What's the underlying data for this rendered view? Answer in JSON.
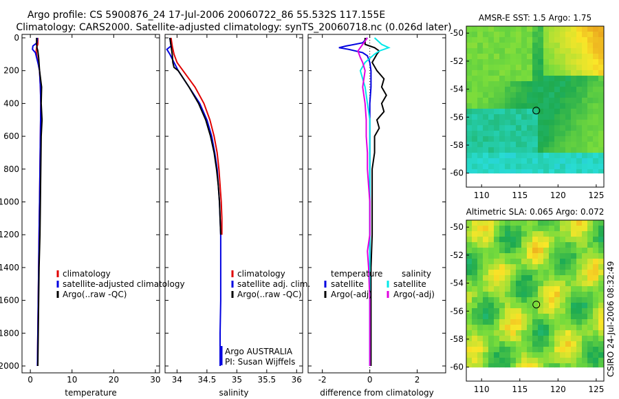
{
  "title_line1": "Argo profile: CS 5900876_24 17-Jul-2006 20060722_86 55.532S 117.155E",
  "title_line2": "Climatology: CARS2000. Satellite-adjusted climatology: synTS_20060718.nc (0.026d later)",
  "colors": {
    "clim": "#e00000",
    "sat": "#0000e0",
    "argo": "#000000",
    "sat_sal": "#00e8e8",
    "argo_sal": "#e000e0"
  },
  "chart_data": [
    {
      "type": "line",
      "id": "temperature",
      "xlabel": "temperature",
      "xlim": [
        -2,
        31
      ],
      "ylim": [
        2050,
        0
      ],
      "xticks": [
        0,
        10,
        20,
        30
      ],
      "yticks": [
        0,
        200,
        400,
        600,
        800,
        1000,
        1200,
        1400,
        1600,
        1800,
        2000
      ],
      "legend": [
        "climatology",
        "satellite-adjusted climatology",
        "Argo(..raw -QC)"
      ],
      "series": [
        {
          "name": "climatology",
          "depth": [
            0,
            40,
            60,
            80,
            120,
            200,
            300,
            400,
            600,
            800,
            1000,
            1200,
            1400,
            1600,
            1800,
            2000
          ],
          "values": [
            1.8,
            1.8,
            1.5,
            1.4,
            1.6,
            2.2,
            2.4,
            2.5,
            2.4,
            2.3,
            2.2,
            2.1,
            2.0,
            1.9,
            1.8,
            1.7
          ]
        },
        {
          "name": "satellite-adjusted climatology",
          "depth": [
            0,
            30,
            50,
            70,
            90,
            120,
            160,
            200,
            300,
            400,
            600,
            800,
            1000,
            1200,
            1400,
            1600,
            1800,
            2000
          ],
          "values": [
            1.7,
            1.6,
            0.6,
            0.5,
            1.2,
            1.5,
            1.9,
            2.2,
            2.4,
            2.5,
            2.4,
            2.3,
            2.2,
            2.1,
            2.0,
            1.9,
            1.8,
            1.7
          ]
        },
        {
          "name": "Argo(..raw -QC)",
          "depth": [
            0,
            40,
            60,
            80,
            120,
            200,
            300,
            400,
            500,
            600,
            800,
            1000,
            1200,
            1400,
            1600,
            1800,
            2000
          ],
          "values": [
            1.5,
            1.5,
            1.6,
            1.8,
            2.0,
            2.2,
            2.7,
            2.6,
            2.8,
            2.6,
            2.5,
            2.4,
            2.3,
            2.1,
            2.0,
            1.9,
            1.8
          ]
        }
      ]
    },
    {
      "type": "line",
      "id": "salinity",
      "xlabel": "salinity",
      "xlim": [
        33.8,
        36.1
      ],
      "ylim": [
        2050,
        0
      ],
      "xticks": [
        34,
        34.5,
        35,
        35.5,
        36
      ],
      "xtick_labels": [
        "34",
        "34.5",
        "35",
        "35.5",
        "36"
      ],
      "legend": [
        "climatology",
        "satellite adj. clim.",
        "Argo(..raw -QC)"
      ],
      "annotation": [
        "Argo AUSTRALIA",
        "PI: Susan Wijffels"
      ],
      "series": [
        {
          "name": "climatology",
          "depth": [
            0,
            50,
            100,
            150,
            200,
            300,
            400,
            500,
            600,
            700,
            800,
            900,
            1000,
            1100,
            1200
          ],
          "values": [
            33.9,
            33.92,
            33.95,
            34.0,
            34.1,
            34.3,
            34.45,
            34.55,
            34.62,
            34.67,
            34.7,
            34.72,
            34.74,
            34.75,
            34.75
          ]
        },
        {
          "name": "satellite adj. clim.",
          "depth": [
            0,
            50,
            70,
            100,
            150,
            200,
            300,
            400,
            500,
            600,
            700,
            800,
            900,
            1000,
            1200,
            1400,
            1600,
            1800,
            2000
          ],
          "values": [
            33.88,
            33.9,
            33.83,
            33.88,
            33.95,
            34.02,
            34.2,
            34.38,
            34.5,
            34.58,
            34.63,
            34.67,
            34.69,
            34.71,
            34.73,
            34.73,
            34.73,
            34.72,
            34.72
          ]
        },
        {
          "name": "Argo(..raw -QC)",
          "depth": [
            0,
            50,
            100,
            150,
            180,
            200,
            300,
            400,
            500,
            600,
            700,
            800,
            900,
            1000,
            1200
          ],
          "values": [
            33.88,
            33.9,
            33.92,
            33.93,
            33.95,
            34.02,
            34.2,
            34.36,
            34.48,
            34.56,
            34.62,
            34.66,
            34.69,
            34.71,
            34.73
          ]
        }
      ]
    },
    {
      "type": "line",
      "id": "difference",
      "xlabel": "difference from climatology",
      "xlim": [
        -2.6,
        3.2
      ],
      "ylim": [
        2050,
        0
      ],
      "xticks": [
        -2,
        0,
        2
      ],
      "legend_titles": [
        "temperature",
        "salinity"
      ],
      "legend": [
        "satellite",
        "Argo(-adj)",
        "satellite",
        "Argo(-adj)"
      ],
      "series": [
        {
          "name": "temperature satellite",
          "depth": [
            0,
            30,
            50,
            60,
            70,
            90,
            110,
            150,
            200,
            300,
            400,
            600,
            800,
            1000,
            1200,
            1400,
            1600,
            1800,
            2000
          ],
          "values": [
            -0.1,
            -0.3,
            -1.0,
            -1.3,
            -0.9,
            -0.3,
            -0.1,
            0.0,
            0.05,
            0.05,
            0.0,
            0.0,
            0.0,
            0.0,
            0.0,
            0.0,
            0.0,
            0.0,
            0.0
          ]
        },
        {
          "name": "temperature Argo(-adj)",
          "depth": [
            0,
            40,
            60,
            80,
            100,
            150,
            200,
            250,
            300,
            350,
            400,
            450,
            500,
            550,
            600,
            700,
            800,
            1000,
            1200,
            1400,
            1600,
            1800,
            2000
          ],
          "values": [
            -0.2,
            -0.2,
            0.2,
            0.4,
            0.3,
            0.1,
            0.3,
            0.6,
            0.5,
            0.7,
            0.5,
            0.6,
            0.3,
            0.4,
            0.2,
            0.2,
            0.1,
            0.1,
            0.1,
            0.05,
            0.05,
            0.05,
            0.05
          ]
        },
        {
          "name": "salinity satellite",
          "depth": [
            0,
            40,
            60,
            80,
            100,
            150,
            200,
            300,
            400,
            500,
            600,
            800,
            1000,
            1200,
            1400,
            1600,
            1800,
            2000
          ],
          "values": [
            0.2,
            0.5,
            0.8,
            0.4,
            0.2,
            -0.2,
            -0.4,
            -0.2,
            -0.1,
            0.0,
            0.0,
            0.0,
            0.0,
            0.0,
            0.0,
            0.0,
            0.0,
            0.0
          ]
        },
        {
          "name": "salinity Argo(-adj)",
          "depth": [
            0,
            40,
            80,
            120,
            150,
            200,
            300,
            400,
            500,
            600,
            700,
            800,
            900,
            1000,
            1100,
            1200,
            1300,
            1400,
            1600,
            1800,
            2000
          ],
          "values": [
            -0.1,
            -0.3,
            -0.5,
            -0.4,
            -0.3,
            -0.2,
            -0.3,
            -0.2,
            -0.15,
            -0.15,
            -0.1,
            -0.1,
            -0.05,
            0.0,
            0.0,
            0.0,
            -0.1,
            -0.05,
            0.0,
            0.0,
            0.0
          ]
        }
      ]
    },
    {
      "type": "heatmap",
      "id": "sst_map",
      "title": "AMSR-E SST: 1.5 Argo: 1.75",
      "xlim": [
        108,
        126
      ],
      "ylim": [
        -61,
        -49.5
      ],
      "xticks": [
        110,
        115,
        120,
        125
      ],
      "yticks": [
        -50,
        -52,
        -54,
        -56,
        -58,
        -60
      ],
      "marker": {
        "lon": 117.155,
        "lat": -55.532
      }
    },
    {
      "type": "heatmap",
      "id": "sla_map",
      "title": "Altimetric SLA: 0.065 Argo: 0.072",
      "xlim": [
        108,
        126
      ],
      "ylim": [
        -61,
        -49.5
      ],
      "xticks": [
        110,
        115,
        120,
        125
      ],
      "yticks": [
        -50,
        -52,
        -54,
        -56,
        -58,
        -60
      ],
      "marker": {
        "lon": 117.155,
        "lat": -55.532
      }
    }
  ],
  "side_stamp": "CSIRO 24-Jul-2006 08:32:49"
}
